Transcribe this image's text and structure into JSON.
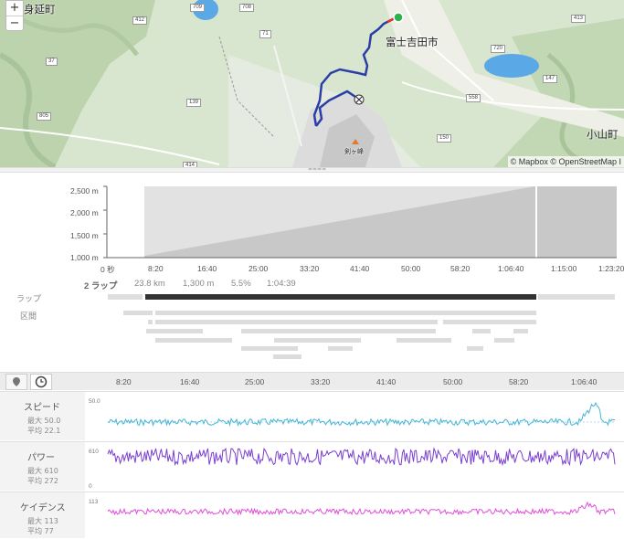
{
  "map": {
    "zoom_in": "+",
    "zoom_out": "−",
    "labels": [
      "富士吉田市",
      "小山町",
      "身延町"
    ],
    "peak_label": "剣ヶ峰",
    "attribution": "© Mapbox © OpenStreetMap I",
    "road_numbers": [
      "709",
      "708",
      "412",
      "413",
      "71",
      "37",
      "720",
      "147",
      "805",
      "139",
      "558",
      "150",
      "414"
    ],
    "colors": {
      "route": "#2a3fa6",
      "start": "#2bb24c",
      "lake": "#5aa8e6",
      "terrain": "#cfe0c2"
    }
  },
  "elevation": {
    "y_ticks": [
      "2,500 m",
      "2,000 m",
      "1,500 m",
      "1,000 m"
    ],
    "x_ticks": [
      "0 秒",
      "8:20",
      "16:40",
      "25:00",
      "33:20",
      "41:40",
      "50:00",
      "58:20",
      "1:06:40",
      "1:15:00",
      "1:23:20"
    ],
    "lap_label": "ラップ",
    "segment_label": "区間",
    "lap_count": "2 ラップ",
    "lap_distance": "23.8 km",
    "lap_climb": "1,300 m",
    "lap_grade": "5.5%",
    "lap_time": "1:04:39"
  },
  "toolbar": {
    "location_icon": "map-pin-icon",
    "time_icon": "clock-icon",
    "x_ticks": [
      "8:20",
      "16:40",
      "25:00",
      "33:20",
      "41:40",
      "50:00",
      "58:20",
      "1:06:40"
    ]
  },
  "metrics": [
    {
      "title": "スピード",
      "max": "最大 50.0",
      "avg": "平均 22.1",
      "ymax": "50.0",
      "ymin": "",
      "color": "#45b5d6"
    },
    {
      "title": "パワー",
      "max": "最大 610",
      "avg": "平均 272",
      "ymax": "610",
      "ymin": "0",
      "color": "#7a3fd1"
    },
    {
      "title": "ケイデンス",
      "max": "最大 113",
      "avg": "平均 77",
      "ymax": "113",
      "ymin": "",
      "color": "#e04ed8"
    }
  ]
}
